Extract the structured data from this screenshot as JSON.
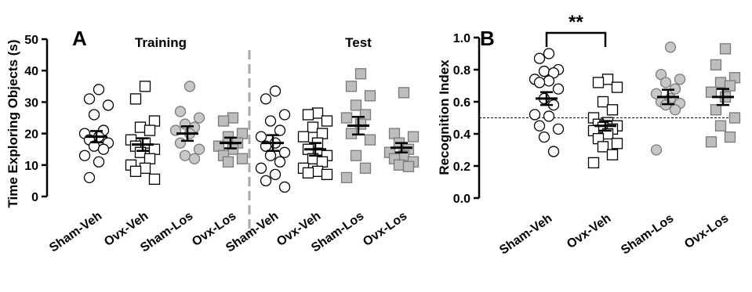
{
  "chart_data": [
    {
      "type": "scatter",
      "panel_label": "A",
      "ylabel": "Time Exploring Objects (s)",
      "ylim": [
        0,
        50
      ],
      "yticks": [
        0,
        10,
        20,
        30,
        40,
        50
      ],
      "sections": [
        {
          "title": "Training",
          "categories": [
            "Sham-Veh",
            "Ovx-Veh",
            "Sham-Los",
            "Ovx-Los"
          ]
        },
        {
          "title": "Test",
          "categories": [
            "Sham-Veh",
            "Ovx-Veh",
            "Sham-Los",
            "Ovx-Los"
          ]
        }
      ],
      "section_divider": true,
      "groups": [
        {
          "section": 0,
          "category": "Sham-Veh",
          "marker": "circle",
          "fill": "#ffffff",
          "mean": 19,
          "sem": 1.8,
          "values": [
            34,
            31,
            29,
            26,
            21,
            20,
            19,
            18,
            17,
            16,
            15,
            13,
            11,
            6
          ]
        },
        {
          "section": 0,
          "category": "Ovx-Veh",
          "marker": "square",
          "fill": "#ffffff",
          "mean": 16.5,
          "sem": 2,
          "values": [
            35,
            31,
            24,
            22,
            21,
            18,
            17,
            16,
            15,
            14,
            12,
            10,
            9,
            8,
            5.5
          ]
        },
        {
          "section": 0,
          "category": "Sham-Los",
          "marker": "circle",
          "fill": "#c8c8c8",
          "mean": 20,
          "sem": 2.3,
          "values": [
            35,
            27,
            25,
            23,
            22,
            21,
            20,
            17,
            15,
            13,
            12
          ]
        },
        {
          "section": 0,
          "category": "Ovx-Los",
          "marker": "square",
          "fill": "#bdbdbd",
          "mean": 17,
          "sem": 1.7,
          "values": [
            25,
            24,
            20,
            19,
            17,
            16,
            15,
            13,
            12,
            11
          ]
        },
        {
          "section": 1,
          "category": "Sham-Veh",
          "marker": "circle",
          "fill": "#ffffff",
          "mean": 17,
          "sem": 2.5,
          "values": [
            33.5,
            31,
            26,
            24,
            21,
            19,
            17,
            16,
            14,
            13,
            11,
            9,
            7,
            5,
            3
          ]
        },
        {
          "section": 1,
          "category": "Ovx-Veh",
          "marker": "square",
          "fill": "#ffffff",
          "mean": 15,
          "sem": 2,
          "values": [
            26.5,
            26,
            24,
            22,
            20,
            19,
            17,
            15,
            13,
            12,
            11,
            9,
            8,
            7.5,
            7
          ]
        },
        {
          "section": 1,
          "category": "Sham-Los",
          "marker": "square",
          "fill": "#bdbdbd",
          "mean": 22.5,
          "sem": 2.8,
          "values": [
            39,
            35,
            32,
            29,
            26,
            25,
            23,
            20,
            18,
            13,
            9,
            6
          ]
        },
        {
          "section": 1,
          "category": "Ovx-Los",
          "marker": "square",
          "fill": "#bdbdbd",
          "mean": 15.5,
          "sem": 1.5,
          "values": [
            33,
            20,
            19,
            17,
            15,
            14,
            13,
            12,
            11,
            10,
            9.5
          ]
        }
      ]
    },
    {
      "type": "scatter",
      "panel_label": "B",
      "ylabel": "Recognition Index",
      "ylim": [
        0,
        1.0
      ],
      "yticks": [
        "0.0",
        "0.2",
        "0.4",
        "0.6",
        "0.8",
        "1.0"
      ],
      "reference_line": 0.5,
      "categories": [
        "Sham-Veh",
        "Ovx-Veh",
        "Sham-Los",
        "Ovx-Los"
      ],
      "significance": {
        "from": "Sham-Veh",
        "to": "Ovx-Veh",
        "label": "**"
      },
      "groups": [
        {
          "category": "Sham-Veh",
          "marker": "circle",
          "fill": "#ffffff",
          "mean": 0.62,
          "sem": 0.04,
          "values": [
            0.9,
            0.87,
            0.8,
            0.79,
            0.78,
            0.74,
            0.73,
            0.72,
            0.68,
            0.62,
            0.58,
            0.52,
            0.51,
            0.45,
            0.43,
            0.38,
            0.29
          ]
        },
        {
          "category": "Ovx-Veh",
          "marker": "square",
          "fill": "#ffffff",
          "mean": 0.45,
          "sem": 0.03,
          "values": [
            0.74,
            0.72,
            0.69,
            0.6,
            0.55,
            0.5,
            0.47,
            0.46,
            0.45,
            0.44,
            0.43,
            0.42,
            0.4,
            0.37,
            0.34,
            0.32,
            0.27,
            0.22
          ]
        },
        {
          "category": "Sham-Los",
          "marker": "circle",
          "fill": "#c8c8c8",
          "mean": 0.63,
          "sem": 0.045,
          "values": [
            0.94,
            0.77,
            0.74,
            0.72,
            0.68,
            0.65,
            0.62,
            0.6,
            0.59,
            0.58,
            0.55,
            0.3
          ]
        },
        {
          "category": "Ovx-Los",
          "marker": "square",
          "fill": "#bdbdbd",
          "mean": 0.63,
          "sem": 0.05,
          "values": [
            0.93,
            0.83,
            0.75,
            0.72,
            0.7,
            0.66,
            0.63,
            0.55,
            0.5,
            0.45,
            0.38,
            0.35
          ]
        }
      ]
    }
  ]
}
